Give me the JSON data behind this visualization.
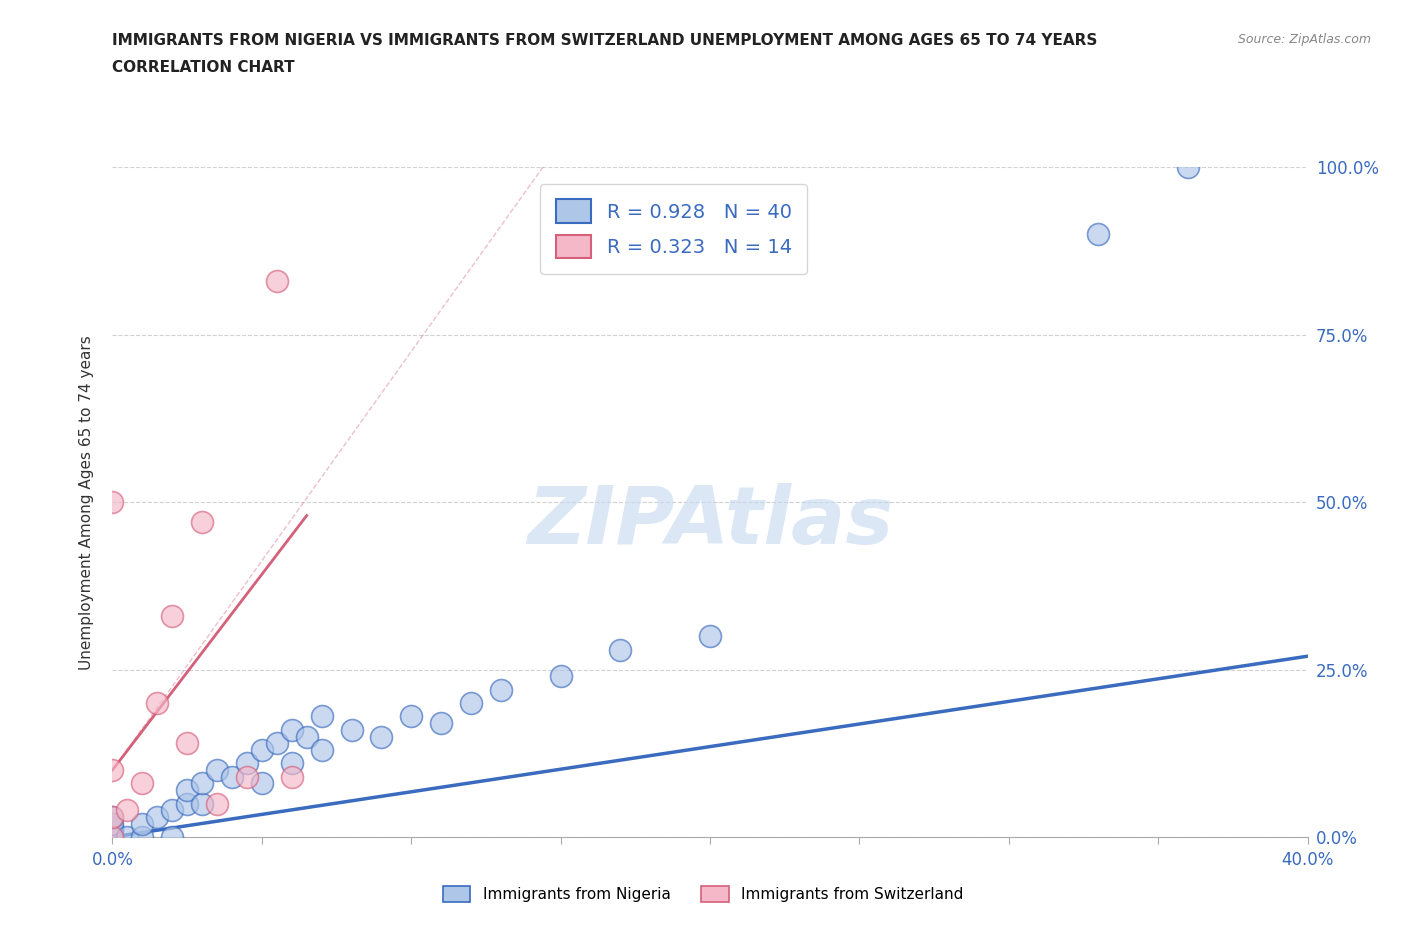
{
  "title_line1": "IMMIGRANTS FROM NIGERIA VS IMMIGRANTS FROM SWITZERLAND UNEMPLOYMENT AMONG AGES 65 TO 74 YEARS",
  "title_line2": "CORRELATION CHART",
  "source": "Source: ZipAtlas.com",
  "ylabel": "Unemployment Among Ages 65 to 74 years",
  "ytick_labels": [
    "0.0%",
    "25.0%",
    "50.0%",
    "75.0%",
    "100.0%"
  ],
  "ytick_values": [
    0,
    25,
    50,
    75,
    100
  ],
  "nigeria_R": 0.928,
  "nigeria_N": 40,
  "switzerland_R": 0.323,
  "switzerland_N": 14,
  "nigeria_color": "#aec6e8",
  "nigeria_line_color": "#3a6bbf",
  "switzerland_color": "#f4b8c8",
  "switzerland_line_color": "#d4607a",
  "legend_nigeria_label": "Immigrants from Nigeria",
  "legend_switzerland_label": "Immigrants from Switzerland",
  "watermark": "ZIPAtlas",
  "background_color": "#ffffff",
  "nigeria_scatter_x": [
    0.0,
    0.0,
    0.0,
    0.0,
    0.0,
    0.0,
    0.0,
    0.0,
    0.5,
    1.0,
    1.0,
    1.5,
    2.0,
    2.0,
    2.5,
    2.5,
    3.0,
    3.0,
    3.5,
    4.0,
    4.5,
    5.0,
    5.0,
    5.5,
    6.0,
    6.0,
    6.5,
    7.0,
    7.0,
    8.0,
    9.0,
    10.0,
    11.0,
    12.0,
    13.0,
    15.0,
    17.0,
    20.0,
    33.0,
    36.0
  ],
  "nigeria_scatter_y": [
    0.0,
    0.0,
    0.0,
    0.5,
    1.0,
    1.5,
    2.0,
    3.0,
    0.0,
    0.0,
    2.0,
    3.0,
    0.0,
    4.0,
    5.0,
    7.0,
    5.0,
    8.0,
    10.0,
    9.0,
    11.0,
    8.0,
    13.0,
    14.0,
    11.0,
    16.0,
    15.0,
    13.0,
    18.0,
    16.0,
    15.0,
    18.0,
    17.0,
    20.0,
    22.0,
    24.0,
    28.0,
    30.0,
    90.0,
    100.0
  ],
  "switzerland_scatter_x": [
    0.0,
    0.0,
    0.0,
    0.0,
    0.5,
    1.0,
    1.5,
    2.0,
    2.5,
    3.0,
    3.5,
    4.5,
    5.5,
    6.0
  ],
  "switzerland_scatter_y": [
    0.0,
    3.0,
    10.0,
    50.0,
    4.0,
    8.0,
    20.0,
    33.0,
    14.0,
    47.0,
    5.0,
    9.0,
    83.0,
    9.0
  ],
  "nigeria_line_x": [
    0.0,
    40.0
  ],
  "nigeria_line_y": [
    0.0,
    27.0
  ],
  "switzerland_line_x": [
    0.0,
    6.5
  ],
  "switzerland_line_y": [
    10.0,
    48.0
  ],
  "xlim": [
    0,
    40
  ],
  "ylim": [
    0,
    100
  ],
  "xtick_minor": [
    5,
    10,
    15,
    20,
    25,
    30,
    35
  ]
}
